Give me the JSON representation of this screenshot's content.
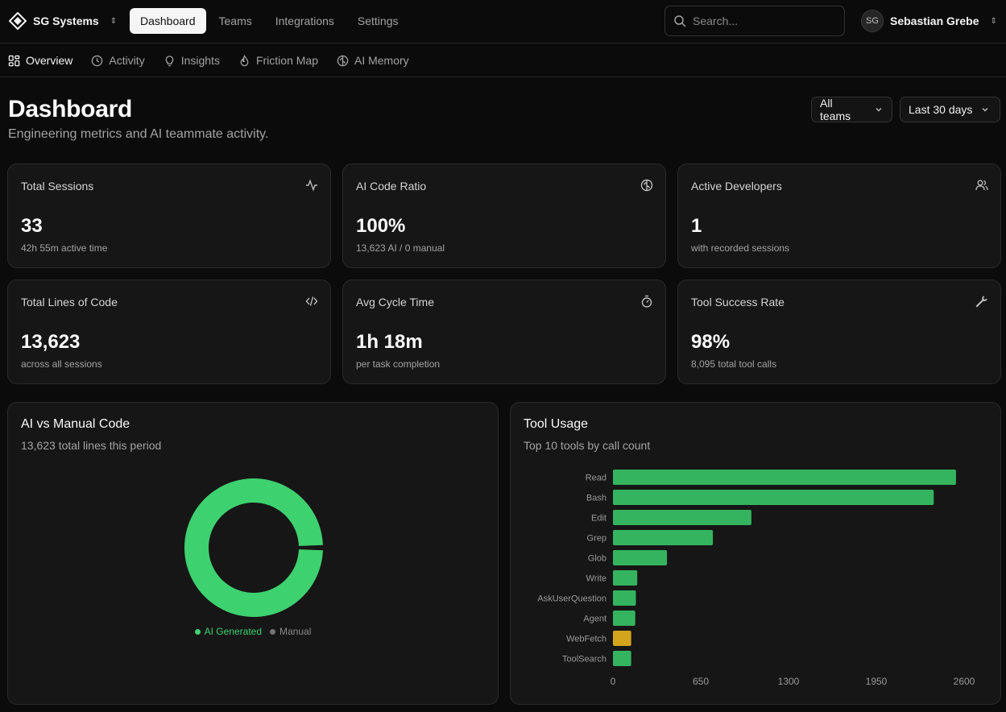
{
  "header": {
    "org_name": "SG Systems",
    "nav": [
      {
        "label": "Dashboard",
        "active": true
      },
      {
        "label": "Teams",
        "active": false
      },
      {
        "label": "Integrations",
        "active": false
      },
      {
        "label": "Settings",
        "active": false
      }
    ],
    "search_placeholder": "Search...",
    "user": {
      "initials": "SG",
      "name": "Sebastian Grebe"
    }
  },
  "subnav": [
    {
      "label": "Overview",
      "icon": "grid-icon",
      "active": true
    },
    {
      "label": "Activity",
      "icon": "clock-icon",
      "active": false
    },
    {
      "label": "Insights",
      "icon": "lightbulb-icon",
      "active": false
    },
    {
      "label": "Friction Map",
      "icon": "flame-icon",
      "active": false
    },
    {
      "label": "AI Memory",
      "icon": "brain-icon",
      "active": false
    }
  ],
  "page": {
    "title": "Dashboard",
    "subtitle": "Engineering metrics and AI teammate activity.",
    "filters": {
      "team": "All teams",
      "range": "Last 30 days"
    }
  },
  "stats": [
    {
      "label": "Total Sessions",
      "value": "33",
      "sub": "42h 55m active time",
      "icon": "activity-icon"
    },
    {
      "label": "AI Code Ratio",
      "value": "100%",
      "sub": "13,623 AI / 0 manual",
      "icon": "brain-icon"
    },
    {
      "label": "Active Developers",
      "value": "1",
      "sub": "with recorded sessions",
      "icon": "users-icon"
    },
    {
      "label": "Total Lines of Code",
      "value": "13,623",
      "sub": "across all sessions",
      "icon": "code-icon"
    },
    {
      "label": "Avg Cycle Time",
      "value": "1h 18m",
      "sub": "per task completion",
      "icon": "timer-icon"
    },
    {
      "label": "Tool Success Rate",
      "value": "98%",
      "sub": "8,095 total tool calls",
      "icon": "wrench-icon"
    }
  ],
  "ai_vs_manual": {
    "title": "AI vs Manual Code",
    "subtitle": "13,623 total lines this period"
  },
  "tool_usage": {
    "title": "Tool Usage",
    "subtitle": "Top 10 tools by call count"
  },
  "colors": {
    "green": "#3ed170",
    "green_bar": "#35b45f",
    "amber": "#d4a51c",
    "grey": "#737373"
  },
  "chart_data": [
    {
      "type": "pie",
      "labels": [
        "AI Generated",
        "Manual"
      ],
      "values": [
        13623,
        0
      ],
      "colors": [
        "#3ed170",
        "#737373"
      ],
      "legend": "bottom"
    },
    {
      "type": "bar",
      "orientation": "horizontal",
      "categories": [
        "Read",
        "Bash",
        "Edit",
        "Grep",
        "Glob",
        "Write",
        "AskUserQuestion",
        "Agent",
        "WebFetch",
        "ToolSearch"
      ],
      "values": [
        2540,
        2375,
        1025,
        740,
        400,
        180,
        170,
        165,
        135,
        135
      ],
      "highlight": [
        "#35b45f",
        "#35b45f",
        "#35b45f",
        "#35b45f",
        "#35b45f",
        "#35b45f",
        "#35b45f",
        "#35b45f",
        "#d4a51c",
        "#35b45f"
      ],
      "xticks": [
        "0",
        "650",
        "1300",
        "1950",
        "2600"
      ],
      "xlim": [
        0,
        2600
      ]
    }
  ]
}
